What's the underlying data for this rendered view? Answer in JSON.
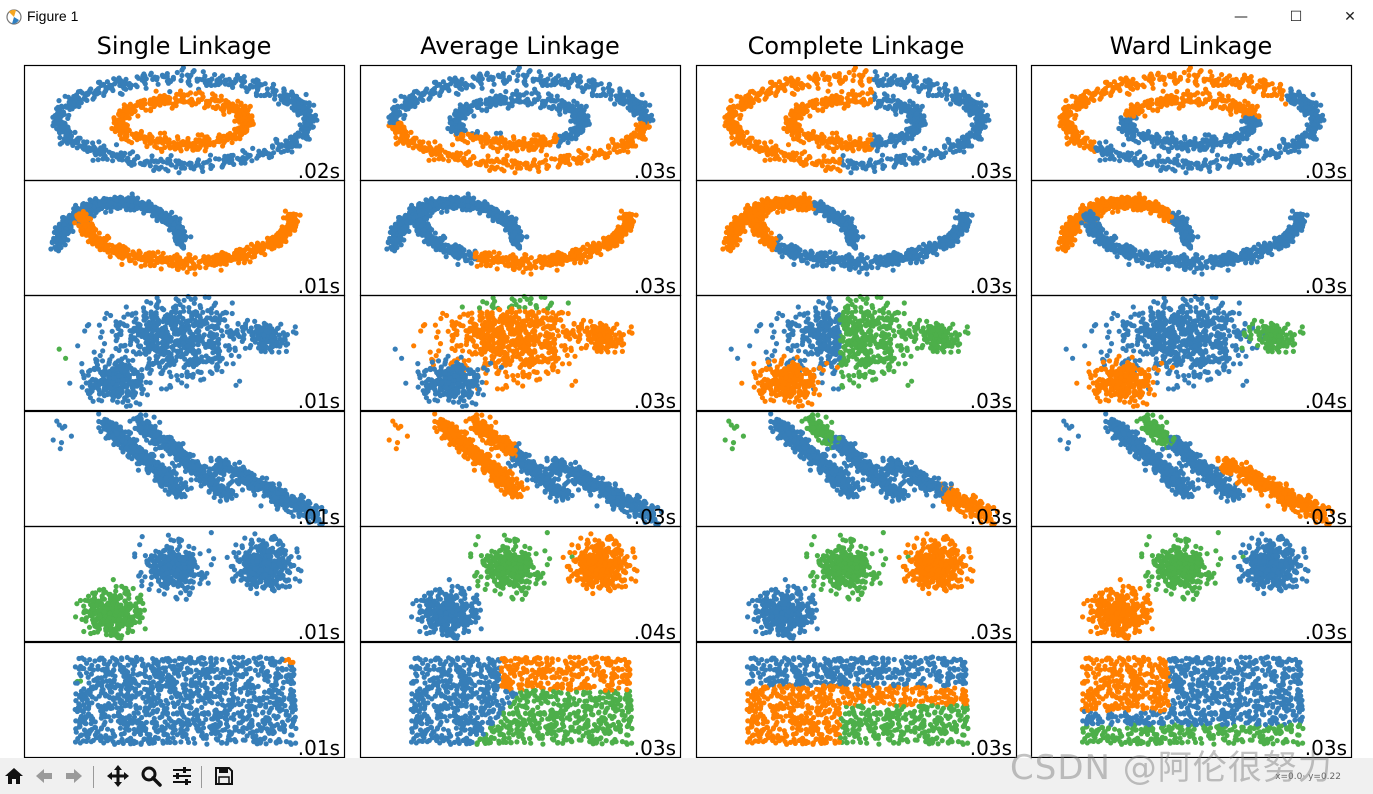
{
  "window": {
    "title": "Figure 1",
    "minimize_glyph": "—",
    "maximize_glyph": "☐",
    "close_glyph": "✕"
  },
  "toolbar": {
    "icons": [
      "home-icon",
      "back-icon",
      "forward-icon",
      "pan-icon",
      "zoom-icon",
      "configure-subplots-icon",
      "save-icon"
    ],
    "coord_readout": "x=0.0· y=0.22"
  },
  "watermark": "CSDN @阿伦很努力",
  "colors": {
    "c0": "#377eb8",
    "c1": "#ff7f00",
    "c2": "#4daf4a"
  },
  "chart_data": {
    "type": "scatter",
    "columns": [
      "Single Linkage",
      "Average Linkage",
      "Complete Linkage",
      "Ward Linkage"
    ],
    "datasets": [
      "noisy circles",
      "noisy moons",
      "varied blobs",
      "anisotropic blobs",
      "blobs",
      "no structure"
    ],
    "times": [
      [
        ".02s",
        ".03s",
        ".03s",
        ".03s"
      ],
      [
        ".01s",
        ".03s",
        ".03s",
        ".03s"
      ],
      [
        ".01s",
        ".03s",
        ".03s",
        ".04s"
      ],
      [
        ".01s",
        ".03s",
        ".03s",
        ".03s"
      ],
      [
        ".01s",
        ".04s",
        ".03s",
        ".03s"
      ],
      [
        ".01s",
        ".03s",
        ".03s",
        ".03s"
      ]
    ],
    "axis_ticks": "none"
  }
}
